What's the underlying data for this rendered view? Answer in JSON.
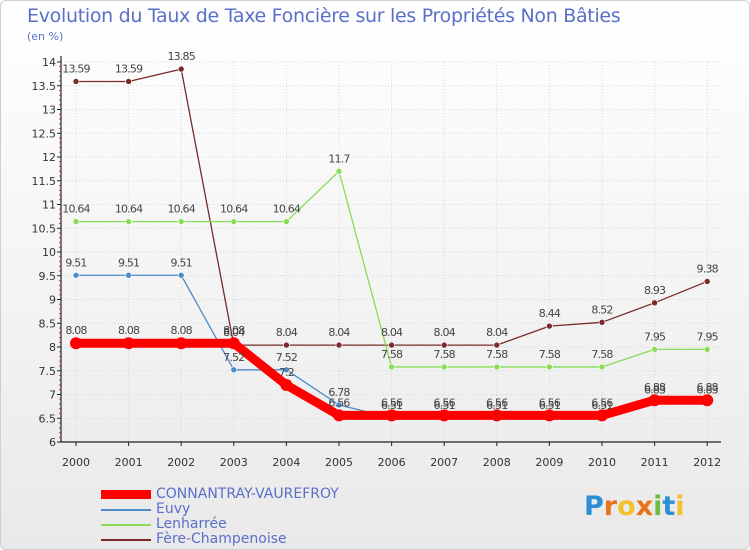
{
  "title": "Evolution du Taux de Taxe Foncière sur les Propriétés Non Bâties",
  "subtitle": "(en %)",
  "logo": {
    "letters": [
      "P",
      "r",
      "o",
      "x",
      "i",
      "t",
      "i"
    ],
    "colors": [
      "#2c8fd6",
      "#e8731c",
      "#f2c12e",
      "#e8731c",
      "#6bbf3a",
      "#2c8fd6",
      "#f2c12e"
    ]
  },
  "chart_data": {
    "type": "line",
    "title": "Evolution du Taux de Taxe Foncière sur les Propriétés Non Bâties",
    "ylabel": "(en %)",
    "xlabel": "",
    "ylim": [
      6,
      14
    ],
    "yticks": [
      "6",
      "6.5",
      "7",
      "7.5",
      "8",
      "8.5",
      "9",
      "9.5",
      "10",
      "10.5",
      "11",
      "11.5",
      "12",
      "12.5",
      "13",
      "13.5",
      "14"
    ],
    "categories": [
      "2000",
      "2001",
      "2002",
      "2003",
      "2004",
      "2005",
      "2006",
      "2007",
      "2008",
      "2009",
      "2010",
      "2011",
      "2012"
    ],
    "series": [
      {
        "name": "CONNANTRAY-VAUREFROY",
        "color": "#ff0000",
        "values": [
          8.08,
          8.08,
          8.08,
          8.08,
          7.2,
          6.56,
          6.56,
          6.56,
          6.56,
          6.56,
          6.56,
          6.88,
          6.88
        ],
        "labels": [
          "8.08",
          "8.08",
          "8.08",
          "8.08",
          "7.2",
          "6.56",
          "6.56",
          "6.56",
          "6.56",
          "6.56",
          "6.56",
          "6.88",
          "6.88"
        ]
      },
      {
        "name": "Euvy",
        "color": "#4a8bc9",
        "values": [
          9.51,
          9.51,
          9.51,
          7.52,
          7.52,
          6.78,
          6.51,
          6.51,
          6.51,
          6.51,
          6.51,
          6.83,
          6.83
        ],
        "labels": [
          "9.51",
          "9.51",
          "9.51",
          "7.52",
          "7.52",
          "6.78",
          "6.51",
          "6.51",
          "6.51",
          "6.51",
          "6.51",
          "6.83",
          "6.83"
        ]
      },
      {
        "name": "Lenharrée",
        "color": "#88dd55",
        "values": [
          10.64,
          10.64,
          10.64,
          10.64,
          10.64,
          11.7,
          7.58,
          7.58,
          7.58,
          7.58,
          7.58,
          7.95,
          7.95
        ],
        "labels": [
          "10.64",
          "10.64",
          "10.64",
          "10.64",
          "10.64",
          "11.7",
          "7.58",
          "7.58",
          "7.58",
          "7.58",
          "7.58",
          "7.95",
          "7.95"
        ]
      },
      {
        "name": "Fère-Champenoise",
        "color": "#7a2a2a",
        "values": [
          13.59,
          13.59,
          13.85,
          8.04,
          8.04,
          8.04,
          8.04,
          8.04,
          8.04,
          8.44,
          8.52,
          8.93,
          9.38
        ],
        "labels": [
          "13.59",
          "13.59",
          "13.85",
          "8.04",
          "8.04",
          "8.04",
          "8.04",
          "8.04",
          "8.04",
          "8.44",
          "8.52",
          "8.93",
          "9.38"
        ]
      }
    ]
  }
}
